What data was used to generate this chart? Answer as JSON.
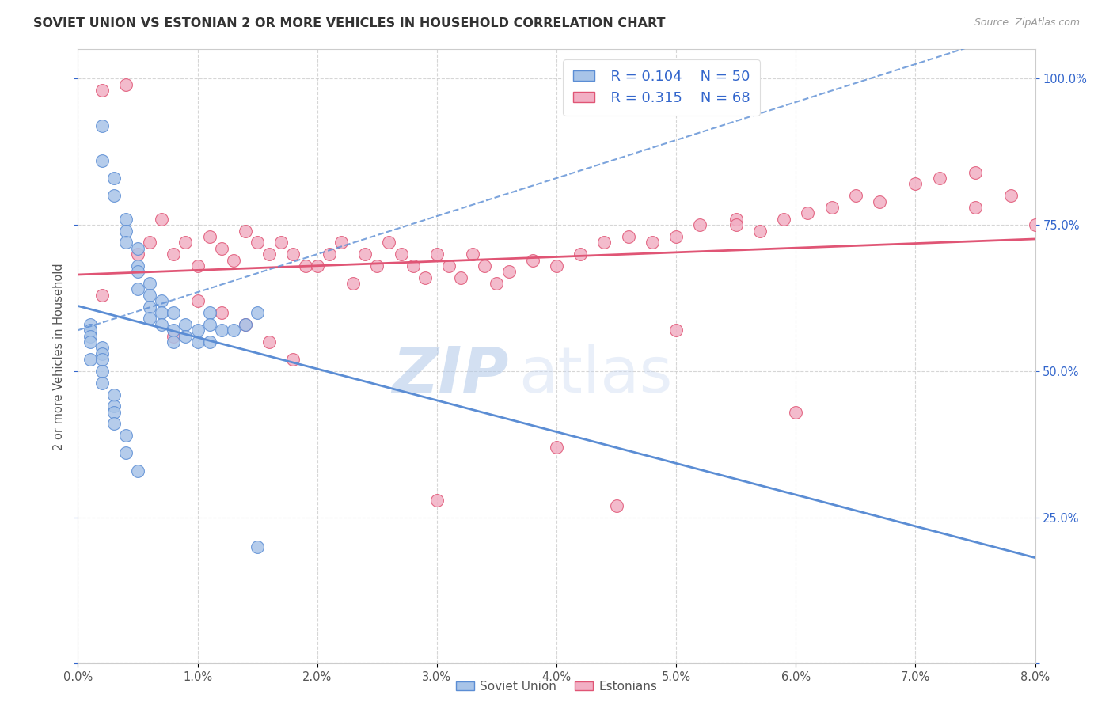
{
  "title": "SOVIET UNION VS ESTONIAN 2 OR MORE VEHICLES IN HOUSEHOLD CORRELATION CHART",
  "source": "Source: ZipAtlas.com",
  "ylabel": "2 or more Vehicles in Household",
  "ytick_labels": [
    "",
    "25.0%",
    "50.0%",
    "75.0%",
    "100.0%"
  ],
  "xmin": 0.0,
  "xmax": 0.08,
  "ymin": 0.0,
  "ymax": 1.05,
  "legend_r1": "R = 0.104",
  "legend_n1": "N = 50",
  "legend_r2": "R = 0.315",
  "legend_n2": "N = 68",
  "label1": "Soviet Union",
  "label2": "Estonians",
  "color1": "#a8c4e8",
  "color2": "#f2afc4",
  "trendline1_color": "#5b8dd4",
  "trendline2_color": "#e05575",
  "r_n_color": "#3366cc",
  "watermark_zip": "ZIP",
  "watermark_atlas": "atlas",
  "soviet_x": [
    0.002,
    0.002,
    0.003,
    0.003,
    0.004,
    0.004,
    0.004,
    0.005,
    0.005,
    0.005,
    0.005,
    0.006,
    0.006,
    0.006,
    0.006,
    0.007,
    0.007,
    0.007,
    0.008,
    0.008,
    0.008,
    0.009,
    0.009,
    0.01,
    0.01,
    0.011,
    0.011,
    0.011,
    0.012,
    0.013,
    0.014,
    0.015,
    0.001,
    0.001,
    0.001,
    0.001,
    0.001,
    0.002,
    0.002,
    0.002,
    0.002,
    0.002,
    0.003,
    0.003,
    0.003,
    0.003,
    0.004,
    0.004,
    0.005,
    0.015
  ],
  "soviet_y": [
    0.92,
    0.86,
    0.83,
    0.8,
    0.76,
    0.74,
    0.72,
    0.71,
    0.68,
    0.67,
    0.64,
    0.65,
    0.63,
    0.61,
    0.59,
    0.62,
    0.6,
    0.58,
    0.6,
    0.57,
    0.55,
    0.58,
    0.56,
    0.57,
    0.55,
    0.6,
    0.58,
    0.55,
    0.57,
    0.57,
    0.58,
    0.6,
    0.58,
    0.57,
    0.56,
    0.55,
    0.52,
    0.54,
    0.53,
    0.52,
    0.5,
    0.48,
    0.46,
    0.44,
    0.43,
    0.41,
    0.39,
    0.36,
    0.33,
    0.2
  ],
  "estonian_x": [
    0.002,
    0.004,
    0.005,
    0.006,
    0.007,
    0.008,
    0.009,
    0.01,
    0.011,
    0.012,
    0.013,
    0.014,
    0.015,
    0.016,
    0.017,
    0.018,
    0.019,
    0.02,
    0.021,
    0.022,
    0.023,
    0.024,
    0.025,
    0.026,
    0.027,
    0.028,
    0.029,
    0.03,
    0.031,
    0.032,
    0.033,
    0.034,
    0.035,
    0.036,
    0.038,
    0.04,
    0.042,
    0.044,
    0.046,
    0.048,
    0.05,
    0.052,
    0.055,
    0.057,
    0.059,
    0.061,
    0.063,
    0.065,
    0.067,
    0.07,
    0.072,
    0.075,
    0.01,
    0.012,
    0.014,
    0.016,
    0.018,
    0.04,
    0.05,
    0.06,
    0.03,
    0.045,
    0.055,
    0.002,
    0.008,
    0.075,
    0.078,
    0.08
  ],
  "estonian_y": [
    0.98,
    0.99,
    0.7,
    0.72,
    0.76,
    0.7,
    0.72,
    0.68,
    0.73,
    0.71,
    0.69,
    0.74,
    0.72,
    0.7,
    0.72,
    0.7,
    0.68,
    0.68,
    0.7,
    0.72,
    0.65,
    0.7,
    0.68,
    0.72,
    0.7,
    0.68,
    0.66,
    0.7,
    0.68,
    0.66,
    0.7,
    0.68,
    0.65,
    0.67,
    0.69,
    0.68,
    0.7,
    0.72,
    0.73,
    0.72,
    0.73,
    0.75,
    0.76,
    0.74,
    0.76,
    0.77,
    0.78,
    0.8,
    0.79,
    0.82,
    0.83,
    0.84,
    0.62,
    0.6,
    0.58,
    0.55,
    0.52,
    0.37,
    0.57,
    0.43,
    0.28,
    0.27,
    0.75,
    0.63,
    0.56,
    0.78,
    0.8,
    0.75
  ]
}
